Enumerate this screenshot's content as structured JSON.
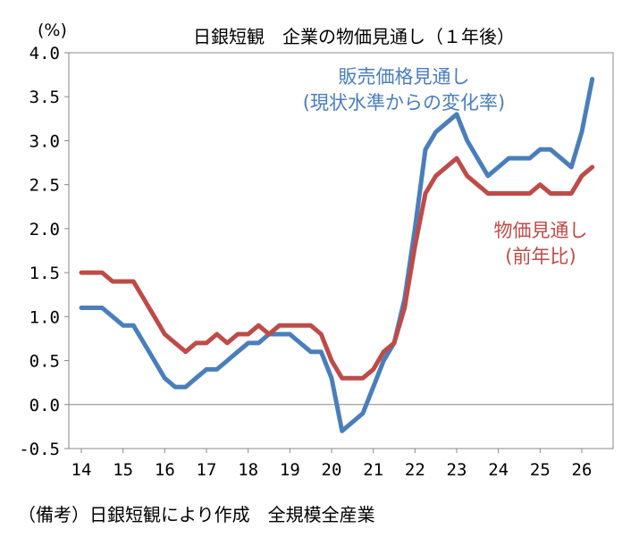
{
  "chart_data": {
    "type": "line",
    "title": "日銀短観　企業の物価見通し（１年後）",
    "y_unit": "(%)",
    "note": "（備考）日銀短観により作成　全規模全産業",
    "ylim": [
      -0.5,
      4.0
    ],
    "y_ticks": [
      "4.0",
      "3.5",
      "3.0",
      "2.5",
      "2.0",
      "1.5",
      "1.0",
      "0.5",
      "0.0",
      "-0.5"
    ],
    "y_tick_values": [
      4.0,
      3.5,
      3.0,
      2.5,
      2.0,
      1.5,
      1.0,
      0.5,
      0.0,
      -0.5
    ],
    "x_ticks": [
      "14",
      "15",
      "16",
      "17",
      "18",
      "19",
      "20",
      "21",
      "22",
      "23",
      "24",
      "25",
      "26"
    ],
    "x_tick_values": [
      2014,
      2015,
      2016,
      2017,
      2018,
      2019,
      2020,
      2021,
      2022,
      2023,
      2024,
      2025,
      2026
    ],
    "xlim": [
      2013.7,
      2026.75
    ],
    "grid": false,
    "zero_line": true,
    "colors": {
      "sales": "#4a7ebb",
      "general": "#be4b48"
    },
    "series": [
      {
        "name": "販売価格見通し",
        "label_line1": "販売価格見通し",
        "label_line2": "(現状水準からの変化率)",
        "color": "#4a7ebb",
        "x": [
          2014.0,
          2014.25,
          2014.5,
          2014.75,
          2015.0,
          2015.25,
          2015.5,
          2015.75,
          2016.0,
          2016.25,
          2016.5,
          2016.75,
          2017.0,
          2017.25,
          2017.5,
          2017.75,
          2018.0,
          2018.25,
          2018.5,
          2018.75,
          2019.0,
          2019.25,
          2019.5,
          2019.75,
          2020.0,
          2020.25,
          2020.5,
          2020.75,
          2021.0,
          2021.25,
          2021.5,
          2021.75,
          2022.0,
          2022.25,
          2022.5,
          2022.75,
          2023.0,
          2023.25,
          2023.5,
          2023.75,
          2024.0,
          2024.25,
          2024.5,
          2024.75,
          2025.0,
          2025.25,
          2025.5,
          2025.75,
          2026.0,
          2026.25
        ],
        "values": [
          1.1,
          1.1,
          1.1,
          1.0,
          0.9,
          0.9,
          0.7,
          0.5,
          0.3,
          0.2,
          0.2,
          0.3,
          0.4,
          0.4,
          0.5,
          0.6,
          0.7,
          0.7,
          0.8,
          0.8,
          0.8,
          0.7,
          0.6,
          0.6,
          0.3,
          -0.3,
          -0.2,
          -0.1,
          0.2,
          0.5,
          0.7,
          1.2,
          2.0,
          2.9,
          3.1,
          3.2,
          3.3,
          3.0,
          2.8,
          2.6,
          2.7,
          2.8,
          2.8,
          2.8,
          2.9,
          2.9,
          2.8,
          2.7,
          3.1,
          3.7
        ]
      },
      {
        "name": "物価見通し",
        "label_line1": "物価見通し",
        "label_line2": "(前年比)",
        "color": "#be4b48",
        "x": [
          2014.0,
          2014.25,
          2014.5,
          2014.75,
          2015.0,
          2015.25,
          2015.5,
          2015.75,
          2016.0,
          2016.25,
          2016.5,
          2016.75,
          2017.0,
          2017.25,
          2017.5,
          2017.75,
          2018.0,
          2018.25,
          2018.5,
          2018.75,
          2019.0,
          2019.25,
          2019.5,
          2019.75,
          2020.0,
          2020.25,
          2020.5,
          2020.75,
          2021.0,
          2021.25,
          2021.5,
          2021.75,
          2022.0,
          2022.25,
          2022.5,
          2022.75,
          2023.0,
          2023.25,
          2023.5,
          2023.75,
          2024.0,
          2024.25,
          2024.5,
          2024.75,
          2025.0,
          2025.25,
          2025.5,
          2025.75,
          2026.0,
          2026.25
        ],
        "values": [
          1.5,
          1.5,
          1.5,
          1.4,
          1.4,
          1.4,
          1.2,
          1.0,
          0.8,
          0.7,
          0.6,
          0.7,
          0.7,
          0.8,
          0.7,
          0.8,
          0.8,
          0.9,
          0.8,
          0.9,
          0.9,
          0.9,
          0.9,
          0.8,
          0.5,
          0.3,
          0.3,
          0.3,
          0.4,
          0.6,
          0.7,
          1.1,
          1.8,
          2.4,
          2.6,
          2.7,
          2.8,
          2.6,
          2.5,
          2.4,
          2.4,
          2.4,
          2.4,
          2.4,
          2.5,
          2.4,
          2.4,
          2.4,
          2.6,
          2.7
        ]
      }
    ]
  }
}
